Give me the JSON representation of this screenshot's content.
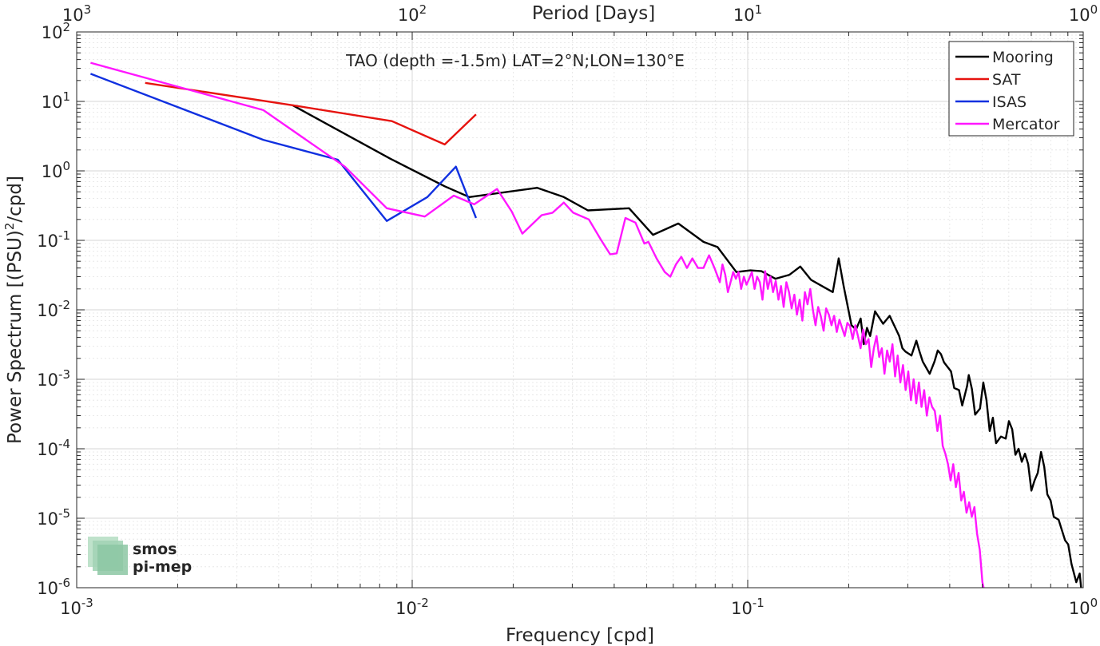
{
  "chart_data": {
    "type": "line",
    "title": "TAO (depth =-1.5m) LAT=2°N;LON=130°E",
    "xlabel": "Frequency [cpd]",
    "ylabel": "Power Spectrum [(PSU)",
    "ylabel_sup": "2",
    "ylabel_tail": "/cpd]",
    "x2label": "Period [Days]",
    "x_scale": "log",
    "y_scale": "log",
    "xlim": [
      0.001,
      1
    ],
    "ylim": [
      1e-06,
      100
    ],
    "grid": true,
    "legend_position": "top-right",
    "x_ticks": [
      {
        "value": 0.001,
        "base": "10",
        "exp": "-3"
      },
      {
        "value": 0.01,
        "base": "10",
        "exp": "-2"
      },
      {
        "value": 0.1,
        "base": "10",
        "exp": "-1"
      },
      {
        "value": 1,
        "base": "10",
        "exp": "0"
      }
    ],
    "x2_ticks": [
      {
        "value": 0.001,
        "base": "10",
        "exp": "3"
      },
      {
        "value": 0.01,
        "base": "10",
        "exp": "2"
      },
      {
        "value": 0.1,
        "base": "10",
        "exp": "1"
      },
      {
        "value": 1,
        "base": "10",
        "exp": "0"
      }
    ],
    "y_ticks": [
      {
        "value": 100,
        "base": "10",
        "exp": "2"
      },
      {
        "value": 10,
        "base": "10",
        "exp": "1"
      },
      {
        "value": 1,
        "base": "10",
        "exp": "0"
      },
      {
        "value": 0.1,
        "base": "10",
        "exp": "-1"
      },
      {
        "value": 0.01,
        "base": "10",
        "exp": "-2"
      },
      {
        "value": 0.001,
        "base": "10",
        "exp": "-3"
      },
      {
        "value": 0.0001,
        "base": "10",
        "exp": "-4"
      },
      {
        "value": 1e-05,
        "base": "10",
        "exp": "-5"
      },
      {
        "value": 1e-06,
        "base": "10",
        "exp": "-6"
      }
    ],
    "series": [
      {
        "name": "Mooring",
        "color": "#000000",
        "points": [
          [
            0.0044,
            8.8
          ],
          [
            0.0086,
            1.5
          ],
          [
            0.0125,
            0.6
          ],
          [
            0.0148,
            0.42
          ],
          [
            0.0236,
            0.57
          ],
          [
            0.0283,
            0.42
          ],
          [
            0.0334,
            0.27
          ],
          [
            0.0443,
            0.29
          ],
          [
            0.0522,
            0.12
          ],
          [
            0.0621,
            0.175
          ],
          [
            0.0738,
            0.095
          ],
          [
            0.0813,
            0.08
          ],
          [
            0.0925,
            0.035
          ],
          [
            0.1018,
            0.037
          ],
          [
            0.1098,
            0.036
          ],
          [
            0.1209,
            0.028
          ],
          [
            0.1332,
            0.032
          ],
          [
            0.1434,
            0.042
          ],
          [
            0.1545,
            0.027
          ],
          [
            0.1664,
            0.022
          ],
          [
            0.1793,
            0.018
          ],
          [
            0.1867,
            0.055
          ],
          [
            0.1932,
            0.022
          ],
          [
            0.2038,
            0.006
          ],
          [
            0.2103,
            0.0052
          ],
          [
            0.2171,
            0.0075
          ],
          [
            0.2218,
            0.0032
          ],
          [
            0.2267,
            0.0055
          ],
          [
            0.2317,
            0.0042
          ],
          [
            0.2396,
            0.0095
          ],
          [
            0.2533,
            0.0063
          ],
          [
            0.2649,
            0.0082
          ],
          [
            0.2828,
            0.0042
          ],
          [
            0.2891,
            0.0028
          ],
          [
            0.2955,
            0.0025
          ],
          [
            0.3077,
            0.0022
          ],
          [
            0.3181,
            0.0036
          ],
          [
            0.3252,
            0.0025
          ],
          [
            0.3324,
            0.0018
          ],
          [
            0.3486,
            0.0012
          ],
          [
            0.3603,
            0.0018
          ],
          [
            0.3684,
            0.0026
          ],
          [
            0.3766,
            0.0023
          ],
          [
            0.3849,
            0.00175
          ],
          [
            0.4035,
            0.0013
          ],
          [
            0.4125,
            0.00075
          ],
          [
            0.4264,
            0.0007
          ],
          [
            0.4359,
            0.00042
          ],
          [
            0.4507,
            0.0008
          ],
          [
            0.4559,
            0.00115
          ],
          [
            0.466,
            0.00072
          ],
          [
            0.4764,
            0.00031
          ],
          [
            0.4925,
            0.00038
          ],
          [
            0.5036,
            0.0009
          ],
          [
            0.5147,
            0.0005
          ],
          [
            0.5262,
            0.00018
          ],
          [
            0.5379,
            0.00028
          ],
          [
            0.5498,
            0.00012
          ],
          [
            0.5684,
            0.00015
          ],
          [
            0.5877,
            0.00014
          ],
          [
            0.6007,
            0.00025
          ],
          [
            0.6141,
            0.00019
          ],
          [
            0.6278,
            8.2e-05
          ],
          [
            0.6417,
            0.0001
          ],
          [
            0.656,
            6.5e-05
          ],
          [
            0.6706,
            8.5e-05
          ],
          [
            0.6855,
            6e-05
          ],
          [
            0.7008,
            2.5e-05
          ],
          [
            0.7163,
            3.5e-05
          ],
          [
            0.7322,
            4.5e-05
          ],
          [
            0.7485,
            9e-05
          ],
          [
            0.7651,
            5.5e-05
          ],
          [
            0.782,
            2.2e-05
          ],
          [
            0.7994,
            1.8e-05
          ],
          [
            0.817,
            1.05e-05
          ],
          [
            0.8446,
            9.5e-06
          ],
          [
            0.8828,
            4.8e-06
          ],
          [
            0.9019,
            4.2e-06
          ],
          [
            0.9227,
            2.2e-06
          ],
          [
            0.9536,
            1.2e-06
          ],
          [
            0.9761,
            1.6e-06
          ],
          [
            0.99,
            8e-07
          ]
        ]
      },
      {
        "name": "SAT",
        "color": "#e6130f",
        "points": [
          [
            0.0016,
            18.5
          ],
          [
            0.0044,
            8.8
          ],
          [
            0.0087,
            5.2
          ],
          [
            0.0125,
            2.4
          ],
          [
            0.0155,
            6.5
          ]
        ]
      },
      {
        "name": "ISAS",
        "color": "#1030e0",
        "points": [
          [
            0.0011,
            25
          ],
          [
            0.0036,
            2.8
          ],
          [
            0.006,
            1.45
          ],
          [
            0.0084,
            0.19
          ],
          [
            0.0111,
            0.42
          ],
          [
            0.0135,
            1.15
          ],
          [
            0.0155,
            0.21
          ]
        ]
      },
      {
        "name": "Mercator",
        "color": "#ff17ff",
        "points": [
          [
            0.0011,
            36
          ],
          [
            0.0036,
            7.5
          ],
          [
            0.0063,
            1.15
          ],
          [
            0.0084,
            0.29
          ],
          [
            0.0109,
            0.22
          ],
          [
            0.0133,
            0.44
          ],
          [
            0.0153,
            0.33
          ],
          [
            0.0179,
            0.55
          ],
          [
            0.0198,
            0.26
          ],
          [
            0.0213,
            0.125
          ],
          [
            0.0243,
            0.23
          ],
          [
            0.0262,
            0.25
          ],
          [
            0.0283,
            0.35
          ],
          [
            0.0302,
            0.25
          ],
          [
            0.0336,
            0.2
          ],
          [
            0.0366,
            0.1
          ],
          [
            0.0389,
            0.063
          ],
          [
            0.0407,
            0.065
          ],
          [
            0.0432,
            0.21
          ],
          [
            0.0463,
            0.18
          ],
          [
            0.0492,
            0.09
          ],
          [
            0.0506,
            0.095
          ],
          [
            0.0535,
            0.055
          ],
          [
            0.0566,
            0.035
          ],
          [
            0.0588,
            0.03
          ],
          [
            0.0611,
            0.045
          ],
          [
            0.0634,
            0.058
          ],
          [
            0.0659,
            0.04
          ],
          [
            0.0684,
            0.055
          ],
          [
            0.0711,
            0.04
          ],
          [
            0.0738,
            0.04
          ],
          [
            0.0767,
            0.061
          ],
          [
            0.0796,
            0.04
          ],
          [
            0.0826,
            0.025
          ],
          [
            0.0841,
            0.045
          ],
          [
            0.0857,
            0.032
          ],
          [
            0.0873,
            0.018
          ],
          [
            0.0889,
            0.025
          ],
          [
            0.0905,
            0.035
          ],
          [
            0.0922,
            0.028
          ],
          [
            0.0939,
            0.035
          ],
          [
            0.0956,
            0.02
          ],
          [
            0.0974,
            0.03
          ],
          [
            0.0992,
            0.023
          ],
          [
            0.101,
            0.028
          ],
          [
            0.1029,
            0.035
          ],
          [
            0.1048,
            0.02
          ],
          [
            0.1067,
            0.03
          ],
          [
            0.1087,
            0.025
          ],
          [
            0.1107,
            0.014
          ],
          [
            0.1127,
            0.036
          ],
          [
            0.1148,
            0.02
          ],
          [
            0.1169,
            0.03
          ],
          [
            0.119,
            0.018
          ],
          [
            0.1212,
            0.026
          ],
          [
            0.1235,
            0.014
          ],
          [
            0.1257,
            0.022
          ],
          [
            0.128,
            0.011
          ],
          [
            0.1304,
            0.025
          ],
          [
            0.1328,
            0.018
          ],
          [
            0.1352,
            0.0105
          ],
          [
            0.1377,
            0.0165
          ],
          [
            0.1402,
            0.0085
          ],
          [
            0.1428,
            0.014
          ],
          [
            0.1455,
            0.007
          ],
          [
            0.1481,
            0.018
          ],
          [
            0.1508,
            0.012
          ],
          [
            0.1536,
            0.02
          ],
          [
            0.1564,
            0.01
          ],
          [
            0.1593,
            0.006
          ],
          [
            0.1622,
            0.011
          ],
          [
            0.1652,
            0.008
          ],
          [
            0.1683,
            0.005
          ],
          [
            0.1713,
            0.0105
          ],
          [
            0.1745,
            0.0085
          ],
          [
            0.1777,
            0.006
          ],
          [
            0.181,
            0.0082
          ],
          [
            0.1843,
            0.0048
          ],
          [
            0.1876,
            0.0072
          ],
          [
            0.1911,
            0.0055
          ],
          [
            0.1946,
            0.0042
          ],
          [
            0.1982,
            0.0065
          ],
          [
            0.2018,
            0.0058
          ],
          [
            0.2055,
            0.0038
          ],
          [
            0.2093,
            0.006
          ],
          [
            0.2131,
            0.0042
          ],
          [
            0.217,
            0.0028
          ],
          [
            0.221,
            0.0052
          ],
          [
            0.2251,
            0.0032
          ],
          [
            0.2292,
            0.0038
          ],
          [
            0.2334,
            0.0015
          ],
          [
            0.2377,
            0.0028
          ],
          [
            0.2421,
            0.0042
          ],
          [
            0.2465,
            0.0021
          ],
          [
            0.251,
            0.0028
          ],
          [
            0.2556,
            0.0012
          ],
          [
            0.2603,
            0.0026
          ],
          [
            0.2651,
            0.0018
          ],
          [
            0.27,
            0.0032
          ],
          [
            0.2749,
            0.0011
          ],
          [
            0.2799,
            0.0022
          ],
          [
            0.2851,
            0.0009
          ],
          [
            0.2903,
            0.0016
          ],
          [
            0.2956,
            0.0007
          ],
          [
            0.301,
            0.0013
          ],
          [
            0.3065,
            0.0005
          ],
          [
            0.3122,
            0.001
          ],
          [
            0.3179,
            0.00045
          ],
          [
            0.3237,
            0.0009
          ],
          [
            0.3296,
            0.0004
          ],
          [
            0.3357,
            0.0007
          ],
          [
            0.3418,
            0.0003
          ],
          [
            0.3481,
            0.00055
          ],
          [
            0.3545,
            0.0004
          ],
          [
            0.361,
            0.00035
          ],
          [
            0.3676,
            0.00018
          ],
          [
            0.3743,
            0.0003
          ],
          [
            0.3812,
            0.00011
          ],
          [
            0.3882,
            8.5e-05
          ],
          [
            0.3953,
            6e-05
          ],
          [
            0.4025,
            3.5e-05
          ],
          [
            0.4099,
            6e-05
          ],
          [
            0.4174,
            2.8e-05
          ],
          [
            0.4251,
            4.5e-05
          ],
          [
            0.4329,
            1.8e-05
          ],
          [
            0.4408,
            2.4e-05
          ],
          [
            0.4489,
            1.2e-05
          ],
          [
            0.4571,
            1.7e-05
          ],
          [
            0.4655,
            1.05e-05
          ],
          [
            0.474,
            1.45e-05
          ],
          [
            0.4827,
            6e-06
          ],
          [
            0.4916,
            3.5e-06
          ],
          [
            0.5006,
            1.2e-06
          ],
          [
            0.5098,
            8e-07
          ]
        ]
      }
    ]
  }
}
